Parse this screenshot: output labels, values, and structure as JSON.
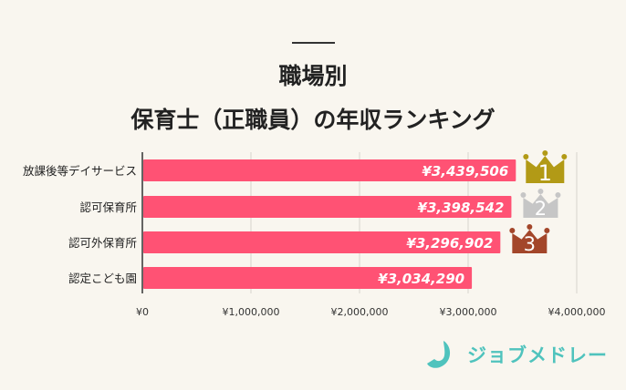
{
  "chart_data": {
    "type": "bar",
    "orientation": "horizontal",
    "title": [
      "職場別",
      "保育士（正職員）の年収ランキング"
    ],
    "categories": [
      "放課後等デイサービス",
      "認可保育所",
      "認可外保育所",
      "認定こども園"
    ],
    "values": [
      3439506,
      3398542,
      3296902,
      3034290
    ],
    "data_labels": [
      "¥3,439,506",
      "¥3,398,542",
      "¥3,296,902",
      "¥3,034,290"
    ],
    "xlim": [
      0,
      4000000
    ],
    "xticks": [
      0,
      1000000,
      2000000,
      3000000,
      4000000
    ],
    "xtick_labels": [
      "¥0",
      "¥1,000,000",
      "¥2,000,000",
      "¥3,000,000",
      "¥4,000,000"
    ],
    "grid": true,
    "ranks": [
      {
        "label": "1",
        "color": "#b29a16"
      },
      {
        "label": "2",
        "color": "#c6c6c6"
      },
      {
        "label": "3",
        "color": "#a3462a"
      }
    ],
    "bar_color": "#ff5274"
  },
  "brand": {
    "name": "ジョブメドレー",
    "color": "#4fc3bd"
  }
}
